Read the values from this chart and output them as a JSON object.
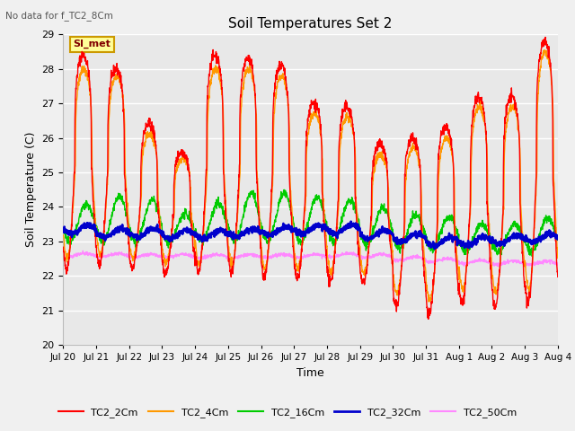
{
  "title": "Soil Temperatures Set 2",
  "top_left_note": "No data for f_TC2_8Cm",
  "ylabel": "Soil Temperature (C)",
  "xlabel": "Time",
  "ylim": [
    20.0,
    29.0
  ],
  "yticks": [
    20.0,
    21.0,
    22.0,
    23.0,
    24.0,
    25.0,
    26.0,
    27.0,
    28.0,
    29.0
  ],
  "x_tick_labels": [
    "Jul 20",
    "Jul 21",
    "Jul 22",
    "Jul 23",
    "Jul 24",
    "Jul 25",
    "Jul 26",
    "Jul 27",
    "Jul 28",
    "Jul 29",
    "Jul 30",
    "Jul 31",
    "Aug 1",
    "Aug 2",
    "Aug 3",
    "Aug 4"
  ],
  "series_colors": {
    "TC2_2Cm": "#ff0000",
    "TC2_4Cm": "#ff9900",
    "TC2_16Cm": "#00cc00",
    "TC2_32Cm": "#0000cc",
    "TC2_50Cm": "#ff88ff"
  },
  "si_met_label": "SI_met",
  "si_met_bg": "#ffff99",
  "si_met_border": "#cc9900",
  "plot_bg": "#e8e8e8",
  "grid_color": "#ffffff",
  "num_days": 15,
  "points_per_day": 144
}
